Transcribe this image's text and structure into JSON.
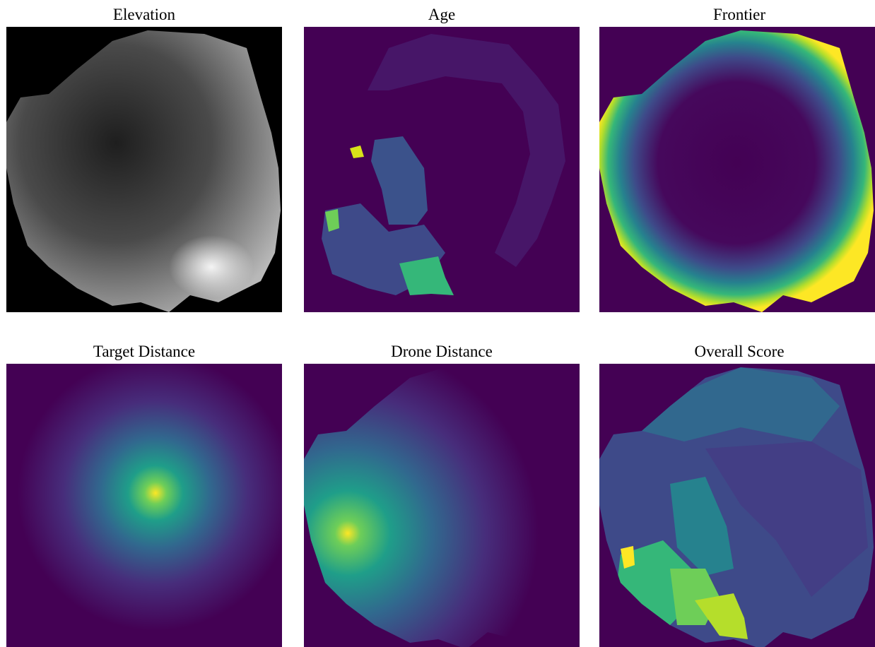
{
  "chart_data": [
    {
      "type": "image",
      "title": "Elevation"
    },
    {
      "type": "image",
      "title": "Age"
    },
    {
      "type": "image",
      "title": "Frontier"
    },
    {
      "type": "image",
      "title": "Target Distance"
    },
    {
      "type": "image",
      "title": "Drone Distance"
    },
    {
      "type": "image",
      "title": "Overall Score"
    }
  ]
}
